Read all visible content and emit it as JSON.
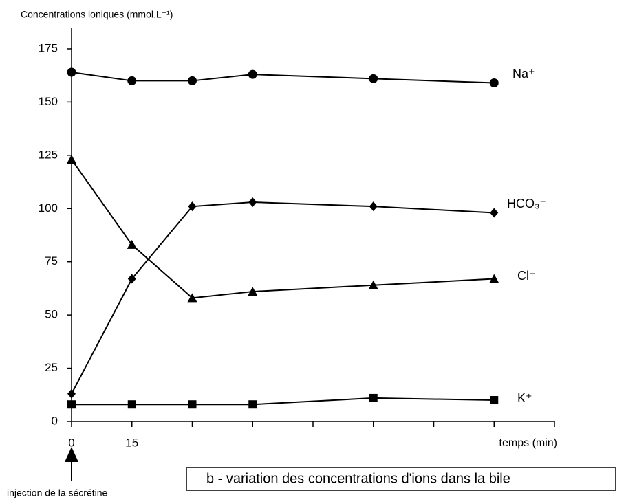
{
  "chart_data": {
    "type": "line",
    "ylabel": "Concentrations ioniques (mmol.L⁻¹)",
    "xlabel": "temps (min)",
    "annotation": "injection de la sécrétine",
    "caption": "b - variation des concentrations d'ions dans la bile",
    "x": [
      0,
      15,
      30,
      45,
      75,
      105
    ],
    "xlim": [
      0,
      120
    ],
    "xticks": [
      0,
      15
    ],
    "xminor_ticks": [
      30,
      45,
      60,
      75,
      90,
      105,
      120
    ],
    "ylim": [
      0,
      185
    ],
    "yticks": [
      0,
      25,
      50,
      75,
      100,
      125,
      150,
      175
    ],
    "series": [
      {
        "name": "Na⁺",
        "color": "#000000",
        "marker": "circle",
        "values": [
          164,
          160,
          160,
          163,
          161,
          159
        ]
      },
      {
        "name": "HCO₃⁻",
        "color": "#000000",
        "marker": "diamond",
        "values": [
          13,
          67,
          101,
          103,
          101,
          98
        ]
      },
      {
        "name": "Cl⁻",
        "color": "#000000",
        "marker": "triangle",
        "values": [
          123,
          83,
          58,
          61,
          64,
          67
        ]
      },
      {
        "name": "K⁺",
        "color": "#000000",
        "marker": "square",
        "values": [
          8,
          8,
          8,
          8,
          11,
          10
        ]
      }
    ]
  }
}
